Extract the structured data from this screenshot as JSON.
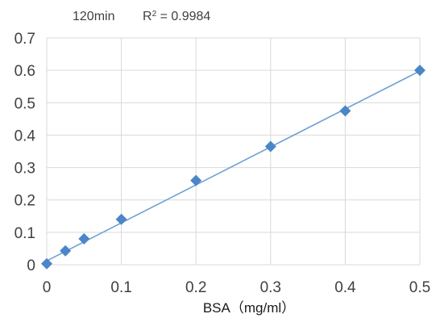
{
  "chart_data": {
    "type": "scatter",
    "title": "120min",
    "annotation": {
      "prefix": "R",
      "superscript": "2",
      "suffix": " = 0.9984"
    },
    "xlabel": "BSA（mg/ml）",
    "ylabel": "",
    "xlim": [
      0,
      0.5
    ],
    "ylim": [
      0,
      0.7
    ],
    "x_ticks": [
      "0",
      "0.1",
      "0.2",
      "0.3",
      "0.4",
      "0.5"
    ],
    "y_ticks": [
      "0",
      "0.1",
      "0.2",
      "0.3",
      "0.4",
      "0.5",
      "0.6",
      "0.7"
    ],
    "grid": true,
    "legend": false,
    "colors": {
      "marker": "#4a86c8",
      "trendline": "#6fa0d4",
      "grid": "#d9d9d9"
    },
    "series": [
      {
        "marker": "diamond",
        "x": [
          0,
          0.025,
          0.05,
          0.1,
          0.2,
          0.3,
          0.4,
          0.5
        ],
        "y": [
          0.003,
          0.043,
          0.08,
          0.14,
          0.26,
          0.365,
          0.475,
          0.6
        ]
      }
    ],
    "trendline": {
      "type": "linear",
      "x": [
        0,
        0.5
      ],
      "y": [
        0.012,
        0.598
      ]
    }
  }
}
